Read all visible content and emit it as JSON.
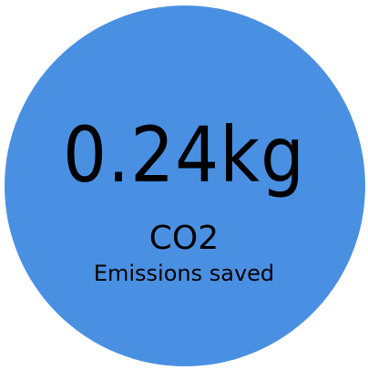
{
  "value": "0.24kg",
  "unit": "CO2",
  "caption": "Emissions saved"
}
